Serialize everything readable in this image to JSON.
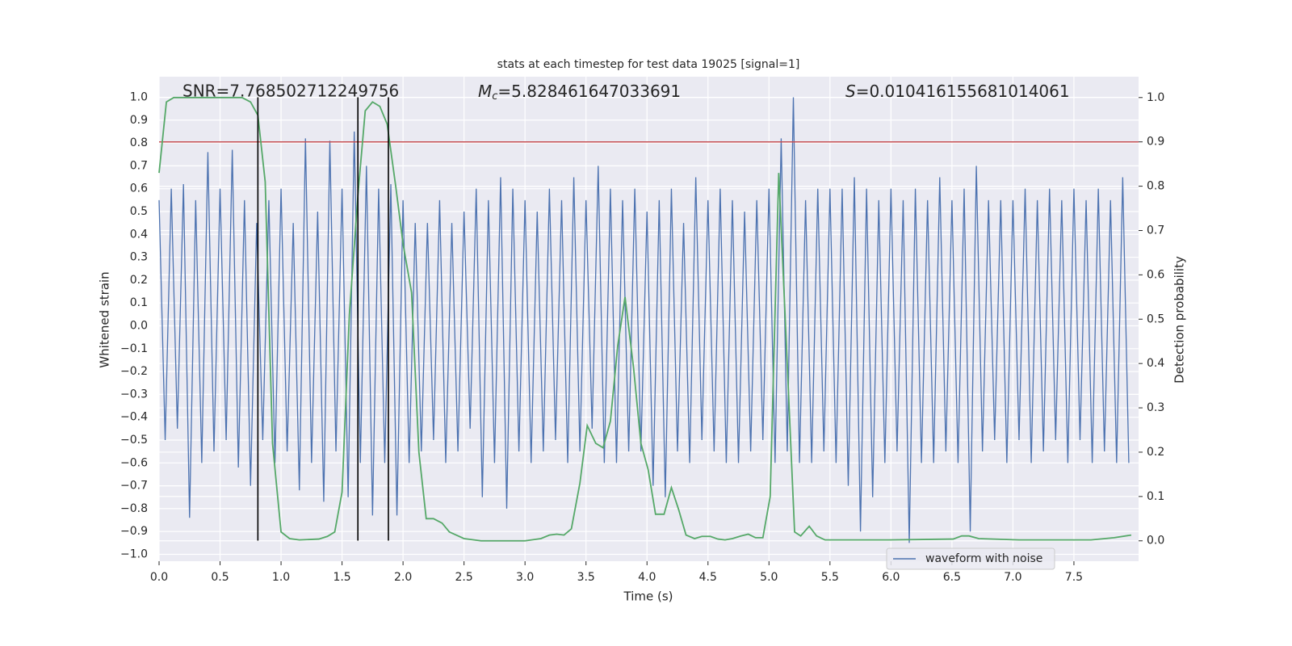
{
  "chart_data": {
    "type": "line",
    "title": "stats at each timestep for test data 19025 [signal=1]",
    "x_label": "Time (s)",
    "y_label": "Whitened strain",
    "y2_label": "Detection probability",
    "annotations": [
      {
        "text": "SNR=7.768502712249756"
      },
      {
        "symbol": "M",
        "subscript": "c",
        "text": "=5.828461647033691"
      },
      {
        "symbol": "S",
        "text": "=0.010416155681014061"
      }
    ],
    "xlim": [
      0,
      8.03
    ],
    "ylim": [
      -1.03,
      1.09
    ],
    "y2lim": [
      -0.046,
      1.047
    ],
    "xticks": [
      {
        "value": 0,
        "label": "0.0"
      },
      0.5,
      {
        "value": 1,
        "label": "1.0"
      },
      1.5,
      {
        "value": 2,
        "label": "2.0"
      },
      2.5,
      {
        "value": 3,
        "label": "3.0"
      },
      3.5,
      {
        "value": 4,
        "label": "4.0"
      },
      4.5,
      {
        "value": 5,
        "label": "5.0"
      },
      5.5,
      {
        "value": 6,
        "label": "6.0"
      },
      6.5,
      {
        "value": 7,
        "label": "7.0"
      },
      7.5
    ],
    "yticks": [
      {
        "value": -1,
        "label": "−1.0"
      },
      {
        "value": -0.9,
        "label": "−0.9"
      },
      {
        "value": -0.8,
        "label": "−0.8"
      },
      {
        "value": -0.7,
        "label": "−0.7"
      },
      {
        "value": -0.6,
        "label": "−0.6"
      },
      {
        "value": -0.5,
        "label": "−0.5"
      },
      {
        "value": -0.4,
        "label": "−0.4"
      },
      {
        "value": -0.3,
        "label": "−0.3"
      },
      {
        "value": -0.2,
        "label": "−0.2"
      },
      {
        "value": -0.1,
        "label": "−0.1"
      },
      {
        "value": 0,
        "label": "0.0"
      },
      0.1,
      0.2,
      0.3,
      0.4,
      0.5,
      0.6,
      0.7,
      0.8,
      0.9,
      {
        "value": 1,
        "label": "1.0"
      }
    ],
    "y2ticks": [
      {
        "value": 0,
        "label": "0.0"
      },
      0.1,
      0.2,
      0.3,
      0.4,
      0.5,
      0.6,
      0.7,
      0.8,
      0.9,
      {
        "value": 1,
        "label": "1.0"
      }
    ],
    "grid": true,
    "legend": "lower right",
    "series": [
      {
        "name": "waveform with noise",
        "color": "#4c72b0",
        "x": [
          0,
          0.05,
          0.1,
          0.15,
          0.2,
          0.25,
          0.3,
          0.35,
          0.4,
          0.45,
          0.5,
          0.55,
          0.6,
          0.65,
          0.7,
          0.75,
          0.8,
          0.85,
          0.9,
          0.95,
          1,
          1.05,
          1.1,
          1.15,
          1.2,
          1.25,
          1.3,
          1.35,
          1.4,
          1.45,
          1.5,
          1.55,
          1.6,
          1.65,
          1.7,
          1.75,
          1.8,
          1.85,
          1.9,
          1.95,
          2,
          2.05,
          2.1,
          2.15,
          2.2,
          2.25,
          2.3,
          2.35,
          2.4,
          2.45,
          2.5,
          2.55,
          2.6,
          2.65,
          2.7,
          2.75,
          2.8,
          2.85,
          2.9,
          2.95,
          3,
          3.05,
          3.1,
          3.15,
          3.2,
          3.25,
          3.3,
          3.35,
          3.4,
          3.45,
          3.5,
          3.55,
          3.6,
          3.65,
          3.7,
          3.75,
          3.8,
          3.85,
          3.9,
          3.95,
          4,
          4.05,
          4.1,
          4.15,
          4.2,
          4.25,
          4.3,
          4.35,
          4.4,
          4.45,
          4.5,
          4.55,
          4.6,
          4.65,
          4.7,
          4.75,
          4.8,
          4.85,
          4.9,
          4.95,
          5,
          5.05,
          5.1,
          5.15,
          5.2,
          5.25,
          5.3,
          5.35,
          5.4,
          5.45,
          5.5,
          5.55,
          5.6,
          5.65,
          5.7,
          5.75,
          5.8,
          5.85,
          5.9,
          5.95,
          6,
          6.05,
          6.1,
          6.15,
          6.2,
          6.25,
          6.3,
          6.35,
          6.4,
          6.45,
          6.5,
          6.55,
          6.6,
          6.65,
          6.7,
          6.75,
          6.8,
          6.85,
          6.9,
          6.95,
          7,
          7.05,
          7.1,
          7.15,
          7.2,
          7.25,
          7.3,
          7.35,
          7.4,
          7.45,
          7.5,
          7.55,
          7.6,
          7.65,
          7.7,
          7.75,
          7.8,
          7.85,
          7.9,
          7.95
        ],
        "values": [
          0.55,
          -0.5,
          0.6,
          -0.45,
          0.62,
          -0.84,
          0.55,
          -0.6,
          0.76,
          -0.55,
          0.6,
          -0.5,
          0.77,
          -0.62,
          0.55,
          -0.7,
          0.45,
          -0.5,
          0.55,
          -0.6,
          0.6,
          -0.55,
          0.45,
          -0.72,
          0.82,
          -0.6,
          0.5,
          -0.77,
          0.81,
          -0.55,
          0.6,
          -0.75,
          0.85,
          -0.6,
          0.7,
          -0.83,
          0.6,
          -0.6,
          0.62,
          -0.83,
          0.55,
          -0.6,
          0.45,
          -0.55,
          0.45,
          -0.5,
          0.55,
          -0.6,
          0.45,
          -0.55,
          0.5,
          -0.45,
          0.6,
          -0.75,
          0.55,
          -0.6,
          0.65,
          -0.8,
          0.6,
          -0.55,
          0.55,
          -0.6,
          0.5,
          -0.55,
          0.6,
          -0.5,
          0.55,
          -0.6,
          0.65,
          -0.55,
          0.55,
          -0.45,
          0.7,
          -0.6,
          0.6,
          -0.6,
          0.55,
          -0.55,
          0.6,
          -0.55,
          0.5,
          -0.7,
          0.55,
          -0.75,
          0.6,
          -0.55,
          0.45,
          -0.6,
          0.65,
          -0.5,
          0.55,
          -0.55,
          0.6,
          -0.6,
          0.55,
          -0.6,
          0.5,
          -0.55,
          0.55,
          -0.5,
          0.6,
          -0.6,
          0.82,
          -0.55,
          1.0,
          -0.6,
          0.55,
          -0.6,
          0.6,
          -0.55,
          0.6,
          -0.6,
          0.6,
          -0.7,
          0.65,
          -0.9,
          0.6,
          -0.75,
          0.55,
          -0.6,
          0.6,
          -0.55,
          0.55,
          -0.95,
          0.6,
          -0.6,
          0.55,
          -0.6,
          0.65,
          -0.55,
          0.55,
          -0.6,
          0.6,
          -0.9,
          0.7,
          -0.55,
          0.55,
          -0.5,
          0.55,
          -0.6,
          0.55,
          -0.5,
          0.6,
          -0.6,
          0.55,
          -0.55,
          0.6,
          -0.5,
          0.55,
          -0.6,
          0.6,
          -0.5,
          0.55,
          -0.6,
          0.6,
          -0.55,
          0.55,
          -0.6,
          0.65,
          -0.6
        ]
      }
    ],
    "probability": {
      "color": "#55a868",
      "axis": "y2",
      "x": [
        0,
        0.06,
        0.12,
        0.68,
        0.75,
        0.81,
        0.87,
        0.93,
        1,
        1.07,
        1.15,
        1.31,
        1.38,
        1.44,
        1.5,
        1.56,
        1.63,
        1.69,
        1.75,
        1.81,
        1.87,
        1.94,
        2,
        2.07,
        2.13,
        2.19,
        2.25,
        2.32,
        2.38,
        2.5,
        2.64,
        3,
        3.13,
        3.2,
        3.26,
        3.32,
        3.38,
        3.45,
        3.51,
        3.58,
        3.64,
        3.7,
        3.76,
        3.82,
        3.89,
        3.95,
        4.01,
        4.07,
        4.14,
        4.2,
        4.26,
        4.32,
        4.39,
        4.45,
        4.52,
        4.58,
        4.64,
        4.7,
        4.77,
        4.83,
        4.89,
        4.95,
        5.01,
        5.08,
        5.14,
        5.21,
        5.26,
        5.33,
        5.39,
        5.46,
        5.98,
        6.51,
        6.58,
        6.64,
        6.72,
        7.05,
        7.64,
        7.83,
        7.97
      ],
      "values": [
        0.83,
        0.99,
        1.0,
        1.0,
        0.99,
        0.96,
        0.81,
        0.22,
        0.02,
        0.005,
        0.002,
        0.004,
        0.01,
        0.02,
        0.11,
        0.51,
        0.78,
        0.97,
        0.99,
        0.98,
        0.94,
        0.8,
        0.67,
        0.56,
        0.2,
        0.05,
        0.05,
        0.04,
        0.02,
        0.005,
        0.0,
        0.0,
        0.005,
        0.013,
        0.015,
        0.013,
        0.027,
        0.13,
        0.26,
        0.22,
        0.21,
        0.27,
        0.44,
        0.55,
        0.39,
        0.22,
        0.16,
        0.06,
        0.06,
        0.12,
        0.07,
        0.013,
        0.005,
        0.01,
        0.01,
        0.004,
        0.002,
        0.005,
        0.011,
        0.015,
        0.007,
        0.007,
        0.1,
        0.83,
        0.46,
        0.02,
        0.011,
        0.033,
        0.011,
        0.002,
        0.002,
        0.004,
        0.011,
        0.011,
        0.005,
        0.002,
        0.002,
        0.007,
        0.013
      ]
    },
    "vlines": {
      "x": [
        0.81,
        1.63,
        1.88
      ],
      "ymin": -0.94,
      "ymax": 1.0,
      "color": "#000000"
    },
    "hline": {
      "value": 0.9,
      "axis": "y2",
      "color": "#c44e52"
    }
  }
}
